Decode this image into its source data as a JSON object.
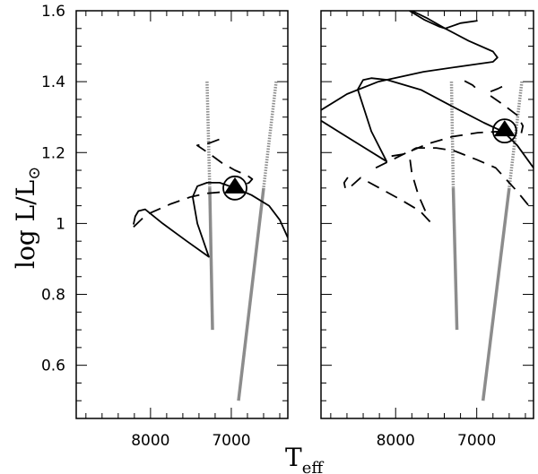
{
  "chart_data": {
    "type": "line",
    "title": "",
    "xlabel": "T",
    "xlabel_sub": "eff",
    "ylabel": "log L/L",
    "ylabel_sun_symbol": "⊙",
    "xlim": [
      8920,
      6300
    ],
    "ylim": [
      0.45,
      1.6
    ],
    "x_ticks": [
      {
        "value": 8000,
        "label": "8000"
      },
      {
        "value": 7000,
        "label": "7000"
      }
    ],
    "y_ticks": [
      {
        "value": 0.6,
        "label": "0.6"
      },
      {
        "value": 0.8,
        "label": "0.8"
      },
      {
        "value": 1.0,
        "label": "1"
      },
      {
        "value": 1.2,
        "label": "1.2"
      },
      {
        "value": 1.4,
        "label": "1.4"
      },
      {
        "value": 1.6,
        "label": "1.6"
      }
    ],
    "colors": {
      "track": "#000000",
      "strip": "#8c8c8c"
    },
    "panels": [
      {
        "name": "left",
        "show_y_labels": true,
        "marker": {
          "T": 6955,
          "L": 1.1
        },
        "strips": [
          {
            "solid": [
              [
                7267,
                1.1
              ],
              [
                7233,
                0.7
              ]
            ],
            "dotted": [
              [
                7300,
                1.4
              ],
              [
                7267,
                1.1
              ]
            ]
          },
          {
            "solid": [
              [
                6600,
                1.1
              ],
              [
                6911,
                0.5
              ]
            ],
            "dotted": [
              [
                6444,
                1.4
              ],
              [
                6600,
                1.1
              ]
            ]
          }
        ],
        "tracks": [
          {
            "style": "solid",
            "points": [
              [
                8211,
                0.997
              ],
              [
                8190,
                1.02
              ],
              [
                8150,
                1.035
              ],
              [
                8067,
                1.04
              ],
              [
                7850,
                1.0
              ],
              [
                7550,
                0.95
              ],
              [
                7278,
                0.906
              ],
              [
                7420,
                1.0
              ],
              [
                7478,
                1.075
              ],
              [
                7420,
                1.105
              ],
              [
                7300,
                1.115
              ],
              [
                7144,
                1.115
              ],
              [
                6955,
                1.1
              ],
              [
                6750,
                1.08
              ],
              [
                6533,
                1.05
              ],
              [
                6400,
                1.01
              ],
              [
                6300,
                0.96
              ]
            ]
          },
          {
            "style": "dashed",
            "points": [
              [
                8211,
                0.99
              ],
              [
                8050,
                1.025
              ],
              [
                7750,
                1.055
              ],
              [
                7500,
                1.075
              ],
              [
                7300,
                1.085
              ],
              [
                7050,
                1.09
              ],
              [
                6880,
                1.105
              ],
              [
                6780,
                1.115
              ],
              [
                6740,
                1.125
              ],
              [
                6800,
                1.135
              ],
              [
                6955,
                1.15
              ],
              [
                7111,
                1.17
              ],
              [
                7290,
                1.2
              ],
              [
                7422,
                1.22
              ],
              [
                7256,
                1.228
              ],
              [
                7060,
                1.245
              ]
            ]
          }
        ]
      },
      {
        "name": "right",
        "show_y_labels": false,
        "marker": {
          "T": 6656,
          "L": 1.261
        },
        "strips": [
          {
            "solid": [
              [
                7289,
                1.1
              ],
              [
                7244,
                0.7
              ]
            ],
            "dotted": [
              [
                7311,
                1.4
              ],
              [
                7289,
                1.1
              ]
            ]
          },
          {
            "solid": [
              [
                6600,
                1.1
              ],
              [
                6922,
                0.5
              ]
            ],
            "dotted": [
              [
                6444,
                1.4
              ],
              [
                6600,
                1.1
              ]
            ]
          }
        ],
        "tracks": [
          {
            "style": "solid",
            "points": [
              [
                8920,
                1.32
              ],
              [
                8600,
                1.365
              ],
              [
                8211,
                1.4
              ],
              [
                7656,
                1.428
              ],
              [
                7200,
                1.443
              ],
              [
                6800,
                1.456
              ],
              [
                6744,
                1.468
              ],
              [
                6800,
                1.485
              ],
              [
                7100,
                1.515
              ],
              [
                7389,
                1.55
              ],
              [
                7620,
                1.58
              ],
              [
                7800,
                1.6
              ]
            ]
          },
          {
            "style": "solid",
            "points": [
              [
                7830,
                1.6
              ],
              [
                7650,
                1.575
              ],
              [
                7460,
                1.555
              ],
              [
                7390,
                1.55
              ],
              [
                7200,
                1.565
              ],
              [
                6990,
                1.572
              ]
            ]
          },
          {
            "style": "solid",
            "points": [
              [
                8920,
                1.29
              ],
              [
                8500,
                1.23
              ],
              [
                8111,
                1.175
              ],
              [
                8300,
                1.26
              ],
              [
                8467,
                1.378
              ],
              [
                8400,
                1.405
              ],
              [
                8300,
                1.41
              ],
              [
                8100,
                1.405
              ],
              [
                7689,
                1.377
              ],
              [
                7300,
                1.33
              ],
              [
                6911,
                1.284
              ],
              [
                6667,
                1.258
              ],
              [
                6500,
                1.22
              ],
              [
                6300,
                1.157
              ]
            ]
          },
          {
            "style": "dashed",
            "points": [
              [
                8244,
                1.157
              ],
              [
                7950,
                1.19
              ],
              [
                7744,
                1.213
              ],
              [
                7500,
                1.213
              ],
              [
                7278,
                1.205
              ],
              [
                7000,
                1.18
              ],
              [
                6767,
                1.157
              ],
              [
                6500,
                1.09
              ],
              [
                6322,
                1.04
              ]
            ]
          },
          {
            "style": "dashed",
            "points": [
              [
                8590,
                1.13
              ],
              [
                8635,
                1.115
              ],
              [
                8622,
                1.1
              ]
            ]
          },
          {
            "style": "dashed",
            "points": [
              [
                8544,
                1.106
              ],
              [
                8433,
                1.129
              ],
              [
                8200,
                1.1
              ],
              [
                7944,
                1.068
              ],
              [
                7700,
                1.035
              ],
              [
                7544,
                0.997
              ]
            ]
          },
          {
            "style": "dashed",
            "points": [
              [
                7822,
                1.18
              ],
              [
                7800,
                1.142
              ],
              [
                7722,
                1.081
              ],
              [
                7611,
                1.023
              ]
            ]
          },
          {
            "style": "dashed",
            "points": [
              [
                8050,
                1.19
              ],
              [
                7911,
                1.195
              ],
              [
                7600,
                1.225
              ],
              [
                7300,
                1.245
              ],
              [
                6989,
                1.256
              ],
              [
                6656,
                1.26
              ]
            ]
          },
          {
            "style": "dashed",
            "points": [
              [
                7150,
                1.402
              ],
              [
                7050,
                1.39
              ],
              [
                6980,
                1.375
              ]
            ]
          },
          {
            "style": "dashed",
            "points": [
              [
                6830,
                1.372
              ],
              [
                6740,
                1.38
              ],
              [
                6650,
                1.39
              ]
            ]
          },
          {
            "style": "dashed",
            "points": [
              [
                6830,
                1.36
              ],
              [
                6667,
                1.334
              ],
              [
                6500,
                1.305
              ],
              [
                6430,
                1.275
              ],
              [
                6450,
                1.255
              ]
            ]
          }
        ]
      }
    ]
  }
}
